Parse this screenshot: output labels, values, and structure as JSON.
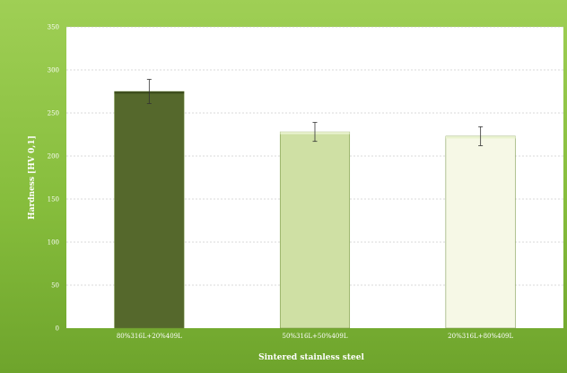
{
  "chart_data": {
    "type": "bar",
    "title": "",
    "xlabel": "Sintered stainless steel",
    "ylabel": "Hardness [HV 0,1]",
    "ylim": [
      0,
      350
    ],
    "yticks": [
      0,
      50,
      100,
      150,
      200,
      250,
      300,
      350
    ],
    "grid": true,
    "categories": [
      "80%316L+20%409L",
      "50%316L+50%409L",
      "20%316L+80%409L"
    ],
    "values": [
      275,
      228,
      223
    ],
    "errors": [
      14,
      11,
      11
    ],
    "colors": [
      "#55682c",
      "#cfe0a4",
      "#f6f8e6"
    ]
  }
}
